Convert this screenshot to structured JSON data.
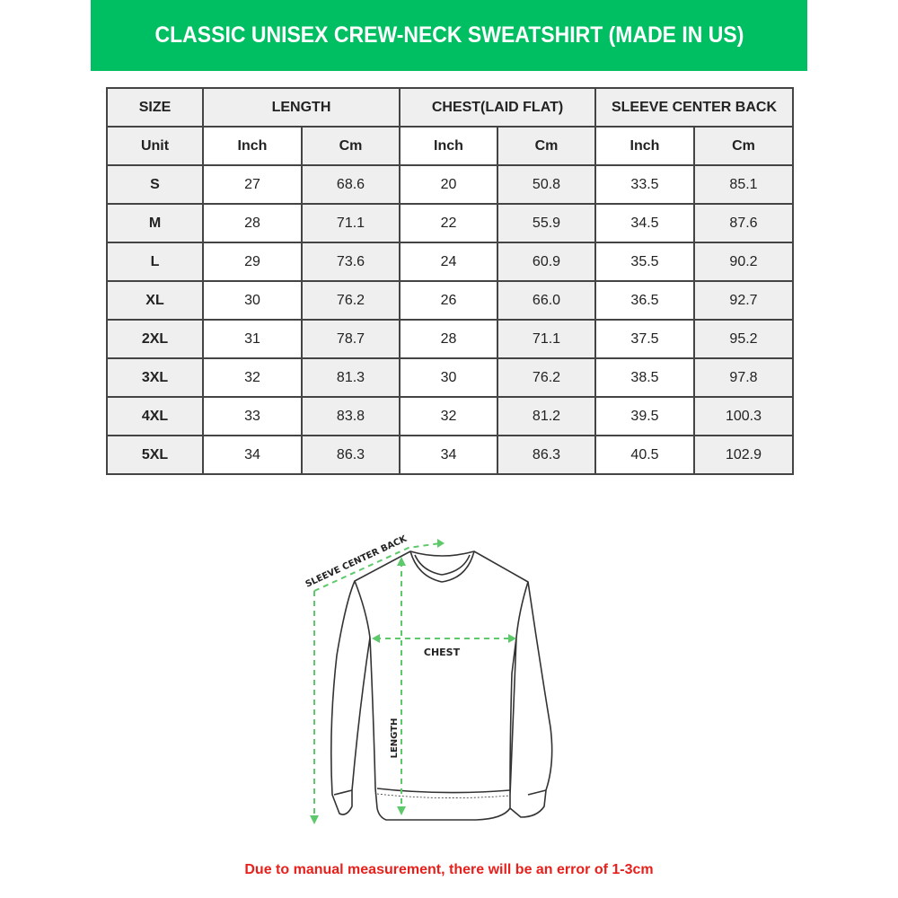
{
  "title": "CLASSIC UNISEX CREW-NECK SWEATSHIRT (MADE IN US)",
  "colors": {
    "banner": "#00bf63",
    "arrow": "#5ec96a",
    "note": "#e8201c"
  },
  "table": {
    "headers": [
      "SIZE",
      "LENGTH",
      "CHEST(LAID FLAT)",
      "SLEEVE CENTER BACK"
    ],
    "units": [
      "Unit",
      "Inch",
      "Cm",
      "Inch",
      "Cm",
      "Inch",
      "Cm"
    ],
    "rows": [
      [
        "S",
        "27",
        "68.6",
        "20",
        "50.8",
        "33.5",
        "85.1"
      ],
      [
        "M",
        "28",
        "71.1",
        "22",
        "55.9",
        "34.5",
        "87.6"
      ],
      [
        "L",
        "29",
        "73.6",
        "24",
        "60.9",
        "35.5",
        "90.2"
      ],
      [
        "XL",
        "30",
        "76.2",
        "26",
        "66.0",
        "36.5",
        "92.7"
      ],
      [
        "2XL",
        "31",
        "78.7",
        "28",
        "71.1",
        "37.5",
        "95.2"
      ],
      [
        "3XL",
        "32",
        "81.3",
        "30",
        "76.2",
        "38.5",
        "97.8"
      ],
      [
        "4XL",
        "33",
        "83.8",
        "32",
        "81.2",
        "39.5",
        "100.3"
      ],
      [
        "5XL",
        "34",
        "86.3",
        "34",
        "86.3",
        "40.5",
        "102.9"
      ]
    ]
  },
  "diagram": {
    "sleeve_label": "SLEEVE CENTER BACK",
    "chest_label": "CHEST",
    "length_label": "LENGTH"
  },
  "note": "Due to manual measurement, there will be an error of 1-3cm"
}
